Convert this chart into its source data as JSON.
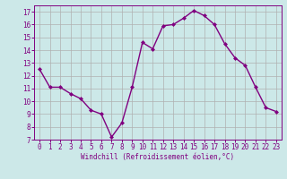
{
  "x": [
    0,
    1,
    2,
    3,
    4,
    5,
    6,
    7,
    8,
    9,
    10,
    11,
    12,
    13,
    14,
    15,
    16,
    17,
    18,
    19,
    20,
    21,
    22,
    23
  ],
  "y": [
    12.5,
    11.1,
    11.1,
    10.6,
    10.2,
    9.3,
    9.0,
    7.2,
    8.3,
    11.1,
    14.6,
    14.1,
    15.9,
    16.0,
    16.5,
    17.1,
    16.7,
    16.0,
    14.5,
    13.4,
    12.8,
    11.1,
    9.5,
    9.2
  ],
  "line_color": "#800080",
  "marker": "D",
  "marker_size": 2.0,
  "line_width": 1.0,
  "bg_color": "#cce8e8",
  "grid_color": "#b0b0b0",
  "xlabel": "Windchill (Refroidissement éolien,°C)",
  "tick_color": "#800080",
  "ylim": [
    7,
    17.5
  ],
  "yticks": [
    7,
    8,
    9,
    10,
    11,
    12,
    13,
    14,
    15,
    16,
    17
  ],
  "font_family": "monospace",
  "tick_fontsize": 5.5,
  "xlabel_fontsize": 5.5
}
